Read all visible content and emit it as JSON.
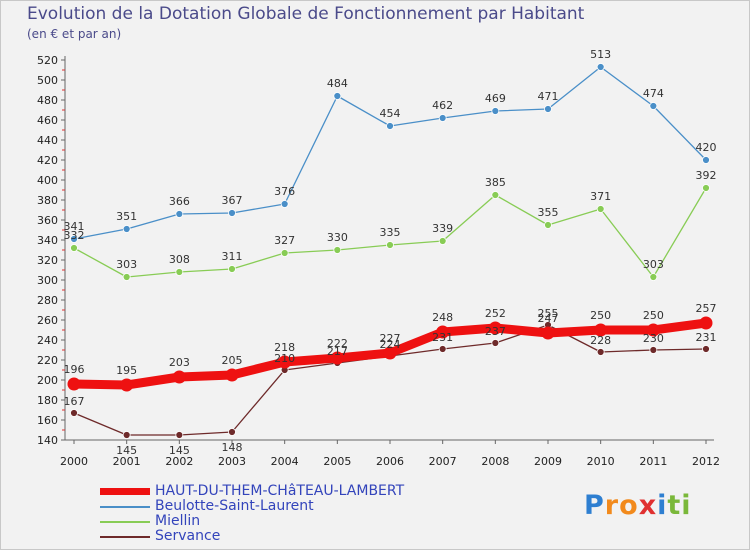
{
  "chart_data": {
    "type": "line",
    "title": "Evolution de la Dotation Globale de Fonctionnement par Habitant",
    "subtitle": "(en € et par an)",
    "xlabel": "",
    "ylabel": "",
    "x": [
      "2000",
      "2001",
      "2002",
      "2003",
      "2004",
      "2005",
      "2006",
      "2007",
      "2008",
      "2009",
      "2010",
      "2011",
      "2012"
    ],
    "ylim": [
      140,
      520
    ],
    "yticks": [
      140,
      160,
      180,
      200,
      220,
      240,
      260,
      280,
      300,
      320,
      340,
      360,
      380,
      400,
      420,
      440,
      460,
      480,
      500,
      520
    ],
    "grid": false,
    "legend_position": "bottom-left",
    "series": [
      {
        "name": "HAUT-DU-THEM-CHâTEAU-LAMBERT",
        "color": "#ee1111",
        "values": [
          196,
          195,
          203,
          205,
          218,
          222,
          227,
          248,
          252,
          247,
          250,
          250,
          257
        ]
      },
      {
        "name": "Beulotte-Saint-Laurent",
        "color": "#4a8fc8",
        "values": [
          341,
          351,
          366,
          367,
          376,
          484,
          454,
          462,
          469,
          471,
          513,
          474,
          420
        ]
      },
      {
        "name": "Miellin",
        "color": "#88cc55",
        "values": [
          332,
          303,
          308,
          311,
          327,
          330,
          335,
          339,
          385,
          355,
          371,
          303,
          392
        ]
      },
      {
        "name": "Servance",
        "color": "#6e2a2a",
        "values": [
          167,
          145,
          145,
          148,
          210,
          217,
          224,
          231,
          237,
          255,
          228,
          230,
          231
        ]
      }
    ]
  },
  "logo": {
    "letters": [
      "P",
      "r",
      "o",
      "x",
      "i",
      "t",
      "i"
    ],
    "colors": [
      "#2e7fd1",
      "#f28a1c",
      "#f28a1c",
      "#e03030",
      "#2e7fd1",
      "#7ab83a",
      "#7ab83a"
    ]
  }
}
